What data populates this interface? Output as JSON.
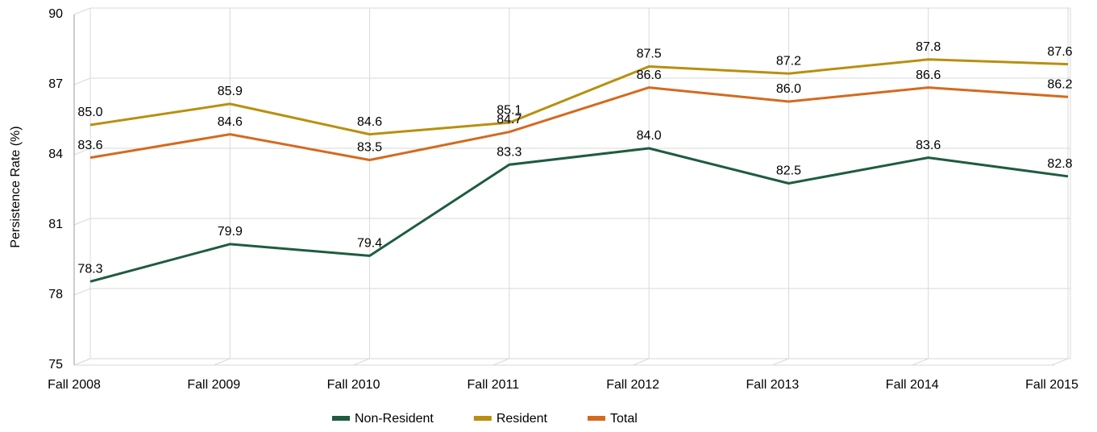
{
  "chart_data": {
    "type": "line",
    "ylabel": "Persistence Rate (%)",
    "categories": [
      "Fall 2008",
      "Fall 2009",
      "Fall 2010",
      "Fall 2011",
      "Fall 2012",
      "Fall 2013",
      "Fall 2014",
      "Fall 2015"
    ],
    "series": [
      {
        "name": "Non-Resident",
        "color": "#1f5c3f",
        "values": [
          78.3,
          79.9,
          79.4,
          83.3,
          84.0,
          82.5,
          83.6,
          82.8
        ],
        "value_labels": [
          "78.3",
          "79.9",
          "79.4",
          "83.3",
          "84.0",
          "82.5",
          "83.6",
          "82.8"
        ]
      },
      {
        "name": "Resident",
        "color": "#b8900f",
        "values": [
          85.0,
          85.9,
          84.6,
          85.1,
          87.5,
          87.2,
          87.8,
          87.6
        ],
        "value_labels": [
          "85.0",
          "85.9",
          "84.6",
          "85.1",
          "87.5",
          "87.2",
          "87.8",
          "87.6"
        ]
      },
      {
        "name": "Total",
        "color": "#d46a1f",
        "values": [
          83.6,
          84.6,
          83.5,
          84.7,
          86.6,
          86.0,
          86.6,
          86.2
        ],
        "value_labels": [
          "83.6",
          "84.6",
          "83.5",
          "84.7",
          "86.6",
          "86.0",
          "86.6",
          "86.2"
        ]
      }
    ],
    "ylim": [
      75,
      90
    ],
    "yticks": [
      75,
      78,
      81,
      84,
      87,
      90
    ],
    "grid": true,
    "legend": "bottom"
  }
}
